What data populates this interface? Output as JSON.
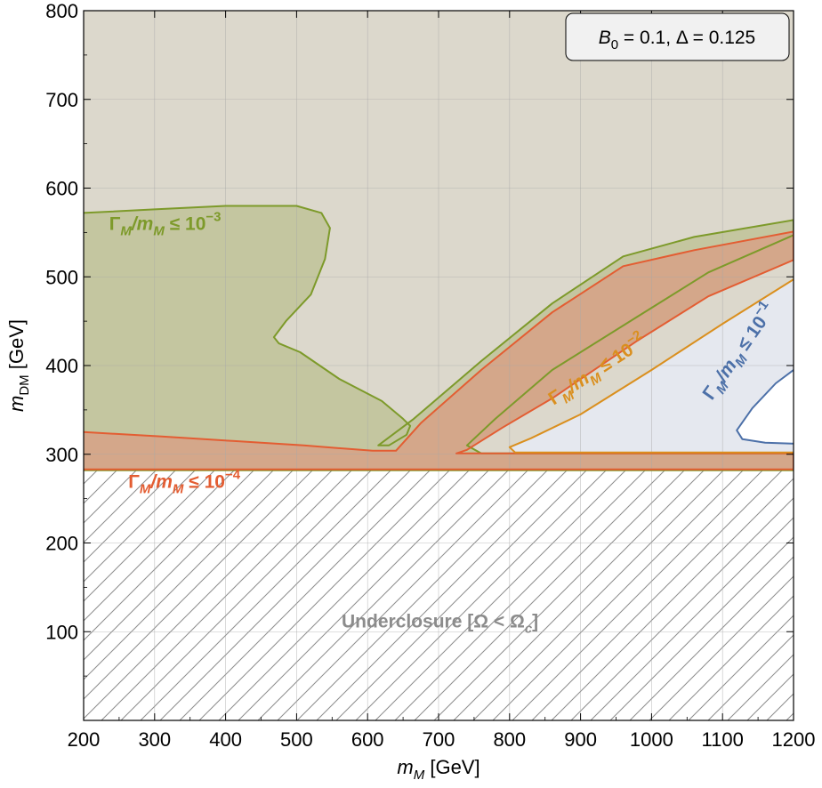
{
  "chart_data": {
    "type": "region",
    "xlabel": {
      "sym": "m",
      "sub": "M",
      "unit": " [GeV]"
    },
    "ylabel": {
      "sym": "m",
      "sub": "DM",
      "unit": " [GeV]"
    },
    "xlim": [
      200,
      1200
    ],
    "ylim": [
      0,
      800
    ],
    "xticks": [
      200,
      300,
      400,
      500,
      600,
      700,
      800,
      900,
      1000,
      1100,
      1200
    ],
    "yticks": [
      100,
      200,
      300,
      400,
      500,
      600,
      700,
      800
    ],
    "grid": true,
    "legend": {
      "placement": "top-right",
      "b_sym": "B",
      "b_sub": "0",
      "b_rest": " = 0.1, Δ = 0.125"
    },
    "colors": {
      "background_region": "#dcd8cc",
      "green": "#7d9a2a",
      "green_fill": "#c4c6a0",
      "orange_red": "#e35d32",
      "orange_red_fill": "#d4a78a",
      "orange": "#da8f1e",
      "blue": "#4c70a8",
      "blue_fill": "#e5e8ef",
      "hatch": "#8c8c8c"
    },
    "hatched_region": {
      "label_main": "Underclosure [Ω < Ω",
      "label_sub": "c",
      "label_end": "]",
      "y_max": 282,
      "label_x": 702,
      "label_y": 105
    },
    "contours": [
      {
        "label_prefix": "Γ",
        "label_sub1": "M",
        "label_mid": "/m",
        "label_sub2": "M",
        "label_le": " ≤ 10",
        "label_exp": "−3",
        "color": "green",
        "fill": "green_fill",
        "label_x": 236,
        "label_y": 553,
        "label_angle": 0,
        "outline": [
          [
            200,
            572
          ],
          [
            300,
            576
          ],
          [
            400,
            580
          ],
          [
            500,
            580
          ],
          [
            535,
            572
          ],
          [
            547,
            555
          ],
          [
            540,
            520
          ],
          [
            520,
            480
          ],
          [
            485,
            450
          ],
          [
            468,
            432
          ],
          [
            475,
            425
          ],
          [
            505,
            415
          ],
          [
            560,
            385
          ],
          [
            620,
            360
          ],
          [
            650,
            340
          ],
          [
            660,
            332
          ],
          [
            655,
            322
          ],
          [
            630,
            310
          ],
          [
            615,
            310
          ],
          [
            665,
            340
          ],
          [
            760,
            405
          ],
          [
            860,
            470
          ],
          [
            960,
            523
          ],
          [
            1060,
            545
          ],
          [
            1200,
            564
          ],
          [
            1200,
            547
          ],
          [
            1080,
            505
          ],
          [
            980,
            455
          ],
          [
            860,
            395
          ],
          [
            780,
            340
          ],
          [
            740,
            310
          ],
          [
            760,
            301
          ],
          [
            1200,
            301
          ],
          [
            1200,
            282
          ],
          [
            200,
            282
          ]
        ]
      },
      {
        "label_prefix": "Γ",
        "label_sub1": "M",
        "label_mid": "/m",
        "label_sub2": "M",
        "label_le": " ≤ 10",
        "label_exp": "−4",
        "color": "orange_red",
        "fill": "orange_red_fill",
        "label_x": 263,
        "label_y": 262,
        "label_angle": 0,
        "outline": [
          [
            200,
            325
          ],
          [
            310,
            320
          ],
          [
            410,
            315
          ],
          [
            510,
            310
          ],
          [
            607,
            304
          ],
          [
            640,
            304
          ],
          [
            675,
            335
          ],
          [
            760,
            395
          ],
          [
            860,
            460
          ],
          [
            960,
            512
          ],
          [
            1060,
            530
          ],
          [
            1200,
            551
          ],
          [
            1200,
            519
          ],
          [
            1080,
            478
          ],
          [
            980,
            428
          ],
          [
            860,
            363
          ],
          [
            790,
            330
          ],
          [
            740,
            305
          ],
          [
            725,
            301
          ],
          [
            1200,
            301
          ],
          [
            1200,
            283
          ],
          [
            200,
            283
          ]
        ]
      },
      {
        "label_prefix": "Γ",
        "label_sub1": "M",
        "label_mid": "/m",
        "label_sub2": "M",
        "label_le": " ≤ 10",
        "label_exp": "−2",
        "color": "orange",
        "fill": "none",
        "label_x": 862,
        "label_y": 355,
        "label_angle": -33,
        "outline": [
          [
            1200,
            497
          ],
          [
            1100,
            447
          ],
          [
            1000,
            395
          ],
          [
            900,
            345
          ],
          [
            830,
            318
          ],
          [
            800,
            308
          ],
          [
            808,
            302
          ],
          [
            1200,
            302
          ]
        ]
      },
      {
        "label_prefix": "Γ",
        "label_sub1": "M",
        "label_mid": "/m",
        "label_sub2": "M",
        "label_le": " ≤ 10",
        "label_exp": "−1",
        "color": "blue",
        "fill": "none",
        "label_x": 1085,
        "label_y": 360,
        "label_angle": -55,
        "outline": [
          [
            1200,
            395
          ],
          [
            1175,
            380
          ],
          [
            1142,
            352
          ],
          [
            1120,
            327
          ],
          [
            1128,
            317
          ],
          [
            1160,
            313
          ],
          [
            1200,
            312
          ]
        ]
      }
    ],
    "white_region_outline": [
      [
        1200,
        395
      ],
      [
        1175,
        380
      ],
      [
        1142,
        352
      ],
      [
        1120,
        327
      ],
      [
        1128,
        317
      ],
      [
        1160,
        313
      ],
      [
        1200,
        312
      ]
    ],
    "blue_fill_outline": [
      [
        1200,
        497
      ],
      [
        1100,
        447
      ],
      [
        1000,
        395
      ],
      [
        900,
        345
      ],
      [
        830,
        318
      ],
      [
        800,
        308
      ],
      [
        808,
        302
      ],
      [
        1200,
        302
      ]
    ]
  }
}
